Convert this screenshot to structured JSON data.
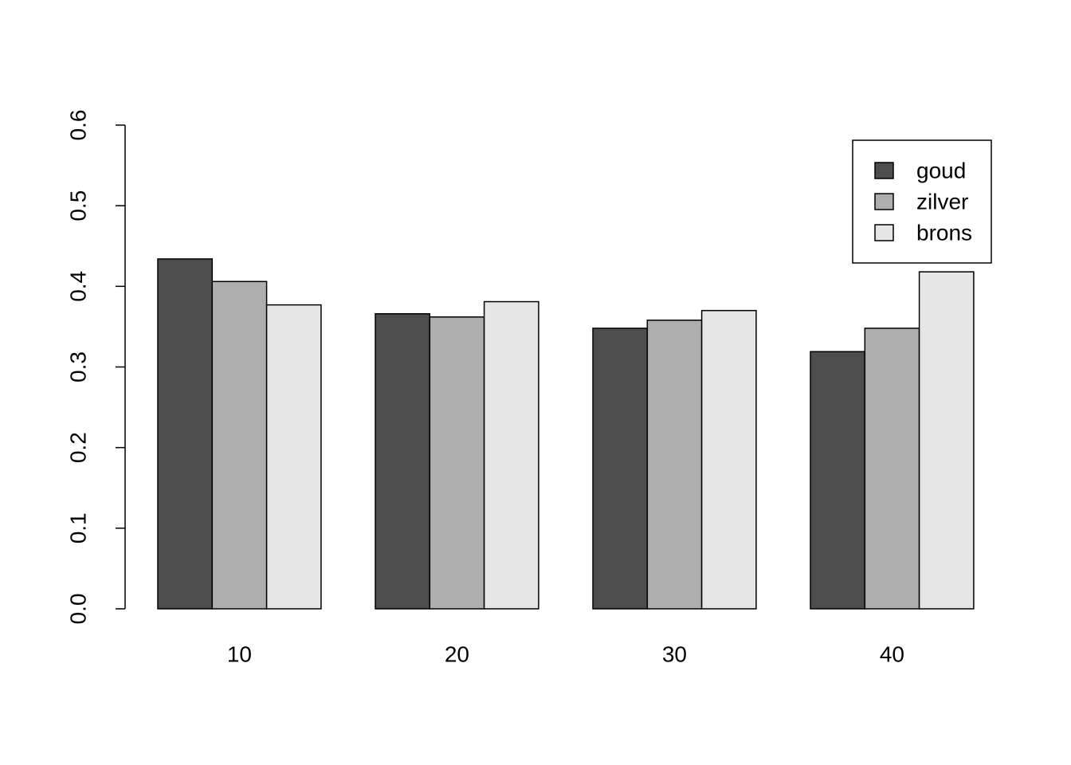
{
  "chart_data": {
    "type": "bar",
    "categories": [
      "10",
      "20",
      "30",
      "40"
    ],
    "series": [
      {
        "name": "goud",
        "color": "#4d4d4d",
        "values": [
          0.434,
          0.366,
          0.348,
          0.319
        ]
      },
      {
        "name": "zilver",
        "color": "#aeaeae",
        "values": [
          0.406,
          0.362,
          0.358,
          0.348
        ]
      },
      {
        "name": "brons",
        "color": "#e6e6e6",
        "values": [
          0.377,
          0.381,
          0.37,
          0.418
        ]
      }
    ],
    "ylim": [
      0,
      0.6
    ],
    "yticks": [
      {
        "value": 0,
        "label": "0.0"
      },
      0.1,
      0.2,
      0.3,
      0.4,
      0.5,
      0.6
    ],
    "legend": "topright"
  }
}
